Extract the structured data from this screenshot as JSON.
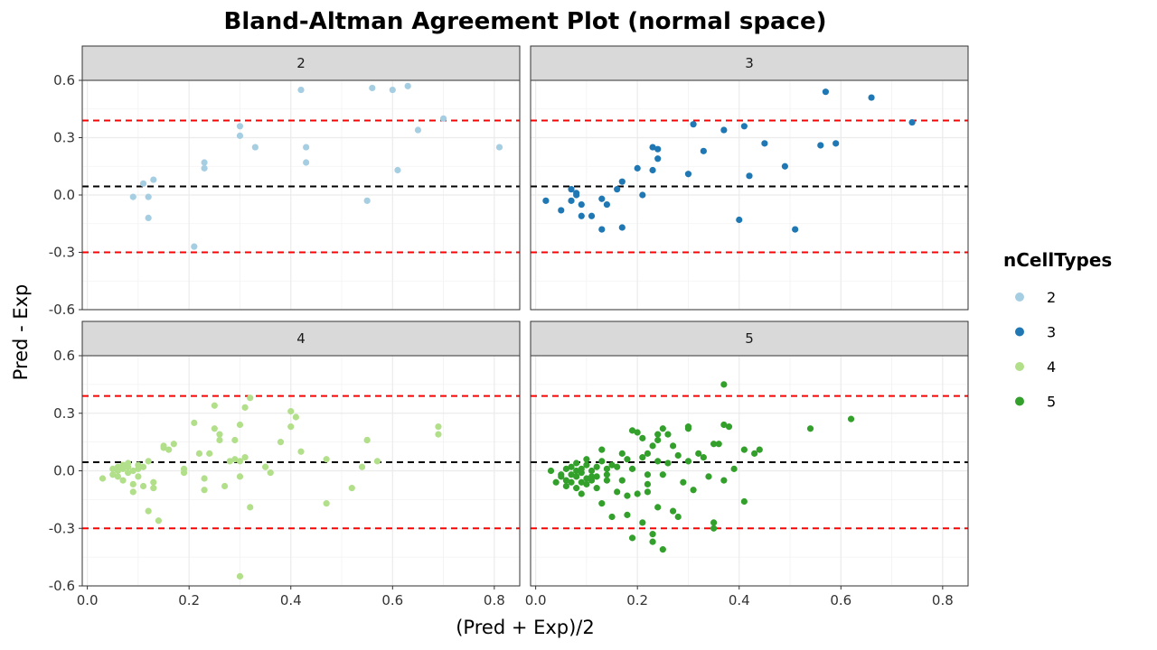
{
  "chart_data": {
    "type": "scatter",
    "title": "Bland-Altman Agreement Plot (normal space)",
    "xlabel": "(Pred + Exp)/2",
    "ylabel": "Pred - Exp",
    "xlim": [
      -0.01,
      0.85
    ],
    "ylim": [
      -0.6,
      0.6
    ],
    "x_ticks": [
      0.0,
      0.2,
      0.4,
      0.6,
      0.8
    ],
    "x_tick_labels": [
      "0.0",
      "0.2",
      "0.4",
      "0.6",
      "0.8"
    ],
    "y_ticks": [
      0.6,
      0.3,
      0.0,
      -0.3,
      -0.6
    ],
    "y_tick_labels": [
      "0.6",
      "0.3",
      "0.0",
      "-0.3",
      "-0.6"
    ],
    "grid": true,
    "facet_by": "nCellTypes",
    "reference_lines": [
      {
        "kind": "mean",
        "y": 0.045,
        "color": "#000000",
        "style": "dashed"
      },
      {
        "kind": "upper-limit",
        "y": 0.39,
        "color": "#ff0000",
        "style": "dashed"
      },
      {
        "kind": "lower-limit",
        "y": -0.3,
        "color": "#ff0000",
        "style": "dashed"
      }
    ],
    "legend": {
      "title": "nCellTypes",
      "position": "right"
    },
    "series": [
      {
        "name": "2",
        "color": "#a6cee3",
        "points": [
          [
            0.09,
            -0.01
          ],
          [
            0.11,
            0.06
          ],
          [
            0.12,
            -0.01
          ],
          [
            0.13,
            0.08
          ],
          [
            0.12,
            -0.12
          ],
          [
            0.21,
            -0.27
          ],
          [
            0.23,
            0.14
          ],
          [
            0.23,
            0.17
          ],
          [
            0.3,
            0.36
          ],
          [
            0.3,
            0.31
          ],
          [
            0.33,
            0.25
          ],
          [
            0.42,
            0.55
          ],
          [
            0.43,
            0.25
          ],
          [
            0.43,
            0.17
          ],
          [
            0.56,
            0.56
          ],
          [
            0.55,
            -0.03
          ],
          [
            0.6,
            0.55
          ],
          [
            0.63,
            0.57
          ],
          [
            0.61,
            0.13
          ],
          [
            0.65,
            0.34
          ],
          [
            0.7,
            0.4
          ],
          [
            0.81,
            0.25
          ]
        ]
      },
      {
        "name": "3",
        "color": "#1f78b4",
        "points": [
          [
            0.02,
            -0.03
          ],
          [
            0.05,
            -0.08
          ],
          [
            0.07,
            0.03
          ],
          [
            0.07,
            -0.03
          ],
          [
            0.08,
            0.0
          ],
          [
            0.08,
            0.01
          ],
          [
            0.09,
            -0.05
          ],
          [
            0.09,
            -0.11
          ],
          [
            0.11,
            -0.11
          ],
          [
            0.13,
            -0.18
          ],
          [
            0.13,
            -0.02
          ],
          [
            0.14,
            -0.05
          ],
          [
            0.16,
            0.03
          ],
          [
            0.17,
            0.07
          ],
          [
            0.17,
            -0.17
          ],
          [
            0.2,
            0.14
          ],
          [
            0.21,
            0.0
          ],
          [
            0.23,
            0.13
          ],
          [
            0.23,
            0.25
          ],
          [
            0.24,
            0.24
          ],
          [
            0.24,
            0.19
          ],
          [
            0.3,
            0.11
          ],
          [
            0.31,
            0.37
          ],
          [
            0.33,
            0.23
          ],
          [
            0.37,
            0.34
          ],
          [
            0.4,
            -0.13
          ],
          [
            0.41,
            0.36
          ],
          [
            0.42,
            0.1
          ],
          [
            0.45,
            0.27
          ],
          [
            0.49,
            0.15
          ],
          [
            0.51,
            -0.18
          ],
          [
            0.56,
            0.26
          ],
          [
            0.57,
            0.54
          ],
          [
            0.59,
            0.27
          ],
          [
            0.66,
            0.51
          ],
          [
            0.74,
            0.38
          ]
        ]
      },
      {
        "name": "4",
        "color": "#b2df8a",
        "points": [
          [
            0.03,
            -0.04
          ],
          [
            0.05,
            0.01
          ],
          [
            0.05,
            -0.02
          ],
          [
            0.06,
            0.0
          ],
          [
            0.06,
            0.02
          ],
          [
            0.06,
            -0.03
          ],
          [
            0.07,
            0.01
          ],
          [
            0.07,
            -0.05
          ],
          [
            0.07,
            0.03
          ],
          [
            0.08,
            0.02
          ],
          [
            0.08,
            -0.01
          ],
          [
            0.08,
            0.04
          ],
          [
            0.09,
            0.0
          ],
          [
            0.09,
            -0.07
          ],
          [
            0.09,
            -0.11
          ],
          [
            0.1,
            0.01
          ],
          [
            0.1,
            0.03
          ],
          [
            0.1,
            -0.03
          ],
          [
            0.11,
            -0.08
          ],
          [
            0.11,
            0.02
          ],
          [
            0.12,
            0.05
          ],
          [
            0.12,
            -0.21
          ],
          [
            0.13,
            -0.06
          ],
          [
            0.13,
            -0.09
          ],
          [
            0.14,
            -0.26
          ],
          [
            0.15,
            0.12
          ],
          [
            0.15,
            0.13
          ],
          [
            0.16,
            0.11
          ],
          [
            0.17,
            0.14
          ],
          [
            0.19,
            0.01
          ],
          [
            0.19,
            -0.01
          ],
          [
            0.21,
            0.25
          ],
          [
            0.22,
            0.09
          ],
          [
            0.23,
            -0.04
          ],
          [
            0.23,
            -0.1
          ],
          [
            0.24,
            0.09
          ],
          [
            0.25,
            0.34
          ],
          [
            0.25,
            0.22
          ],
          [
            0.26,
            0.19
          ],
          [
            0.26,
            0.16
          ],
          [
            0.27,
            -0.08
          ],
          [
            0.28,
            0.05
          ],
          [
            0.29,
            0.16
          ],
          [
            0.29,
            0.06
          ],
          [
            0.3,
            -0.03
          ],
          [
            0.3,
            0.24
          ],
          [
            0.3,
            -0.55
          ],
          [
            0.3,
            0.05
          ],
          [
            0.31,
            0.33
          ],
          [
            0.31,
            0.07
          ],
          [
            0.32,
            0.38
          ],
          [
            0.32,
            -0.19
          ],
          [
            0.35,
            0.02
          ],
          [
            0.36,
            -0.01
          ],
          [
            0.38,
            0.15
          ],
          [
            0.4,
            0.23
          ],
          [
            0.4,
            0.31
          ],
          [
            0.41,
            0.28
          ],
          [
            0.42,
            0.1
          ],
          [
            0.47,
            0.06
          ],
          [
            0.47,
            -0.17
          ],
          [
            0.52,
            -0.09
          ],
          [
            0.54,
            0.02
          ],
          [
            0.55,
            0.16
          ],
          [
            0.55,
            0.16
          ],
          [
            0.57,
            0.05
          ],
          [
            0.69,
            0.23
          ],
          [
            0.69,
            0.19
          ]
        ]
      },
      {
        "name": "5",
        "color": "#33a02c",
        "points": [
          [
            0.03,
            0.0
          ],
          [
            0.04,
            -0.06
          ],
          [
            0.05,
            -0.02
          ],
          [
            0.05,
            -0.03
          ],
          [
            0.06,
            -0.05
          ],
          [
            0.06,
            0.01
          ],
          [
            0.06,
            -0.08
          ],
          [
            0.07,
            -0.02
          ],
          [
            0.07,
            -0.06
          ],
          [
            0.07,
            0.02
          ],
          [
            0.08,
            -0.03
          ],
          [
            0.08,
            -0.09
          ],
          [
            0.08,
            0.0
          ],
          [
            0.08,
            0.04
          ],
          [
            0.09,
            -0.06
          ],
          [
            0.09,
            -0.01
          ],
          [
            0.09,
            0.01
          ],
          [
            0.09,
            -0.12
          ],
          [
            0.1,
            -0.04
          ],
          [
            0.1,
            0.03
          ],
          [
            0.1,
            -0.07
          ],
          [
            0.1,
            0.06
          ],
          [
            0.11,
            -0.05
          ],
          [
            0.11,
            -0.03
          ],
          [
            0.11,
            0.0
          ],
          [
            0.12,
            -0.03
          ],
          [
            0.12,
            0.02
          ],
          [
            0.12,
            -0.09
          ],
          [
            0.13,
            0.11
          ],
          [
            0.13,
            0.05
          ],
          [
            0.13,
            -0.17
          ],
          [
            0.14,
            -0.05
          ],
          [
            0.14,
            -0.02
          ],
          [
            0.14,
            0.01
          ],
          [
            0.15,
            -0.24
          ],
          [
            0.15,
            0.03
          ],
          [
            0.16,
            -0.11
          ],
          [
            0.16,
            0.02
          ],
          [
            0.17,
            -0.05
          ],
          [
            0.17,
            0.09
          ],
          [
            0.18,
            0.06
          ],
          [
            0.18,
            -0.13
          ],
          [
            0.18,
            -0.23
          ],
          [
            0.19,
            -0.35
          ],
          [
            0.19,
            0.01
          ],
          [
            0.19,
            0.21
          ],
          [
            0.2,
            -0.12
          ],
          [
            0.2,
            0.2
          ],
          [
            0.21,
            0.17
          ],
          [
            0.21,
            -0.27
          ],
          [
            0.21,
            0.07
          ],
          [
            0.22,
            -0.02
          ],
          [
            0.22,
            -0.11
          ],
          [
            0.22,
            0.09
          ],
          [
            0.22,
            -0.07
          ],
          [
            0.23,
            -0.33
          ],
          [
            0.23,
            0.13
          ],
          [
            0.23,
            -0.37
          ],
          [
            0.24,
            0.16
          ],
          [
            0.24,
            0.19
          ],
          [
            0.24,
            -0.19
          ],
          [
            0.24,
            0.05
          ],
          [
            0.25,
            -0.41
          ],
          [
            0.25,
            0.22
          ],
          [
            0.25,
            -0.02
          ],
          [
            0.26,
            0.19
          ],
          [
            0.26,
            0.04
          ],
          [
            0.27,
            -0.21
          ],
          [
            0.27,
            0.13
          ],
          [
            0.28,
            -0.24
          ],
          [
            0.28,
            0.08
          ],
          [
            0.29,
            -0.06
          ],
          [
            0.3,
            0.05
          ],
          [
            0.3,
            0.22
          ],
          [
            0.3,
            0.23
          ],
          [
            0.31,
            -0.1
          ],
          [
            0.32,
            0.09
          ],
          [
            0.33,
            0.07
          ],
          [
            0.34,
            -0.03
          ],
          [
            0.35,
            0.14
          ],
          [
            0.35,
            -0.27
          ],
          [
            0.35,
            -0.3
          ],
          [
            0.36,
            0.14
          ],
          [
            0.37,
            -0.05
          ],
          [
            0.37,
            0.45
          ],
          [
            0.37,
            0.24
          ],
          [
            0.38,
            0.23
          ],
          [
            0.39,
            0.01
          ],
          [
            0.41,
            0.11
          ],
          [
            0.41,
            -0.16
          ],
          [
            0.43,
            0.09
          ],
          [
            0.44,
            0.11
          ],
          [
            0.54,
            0.22
          ],
          [
            0.62,
            0.27
          ]
        ]
      }
    ]
  }
}
